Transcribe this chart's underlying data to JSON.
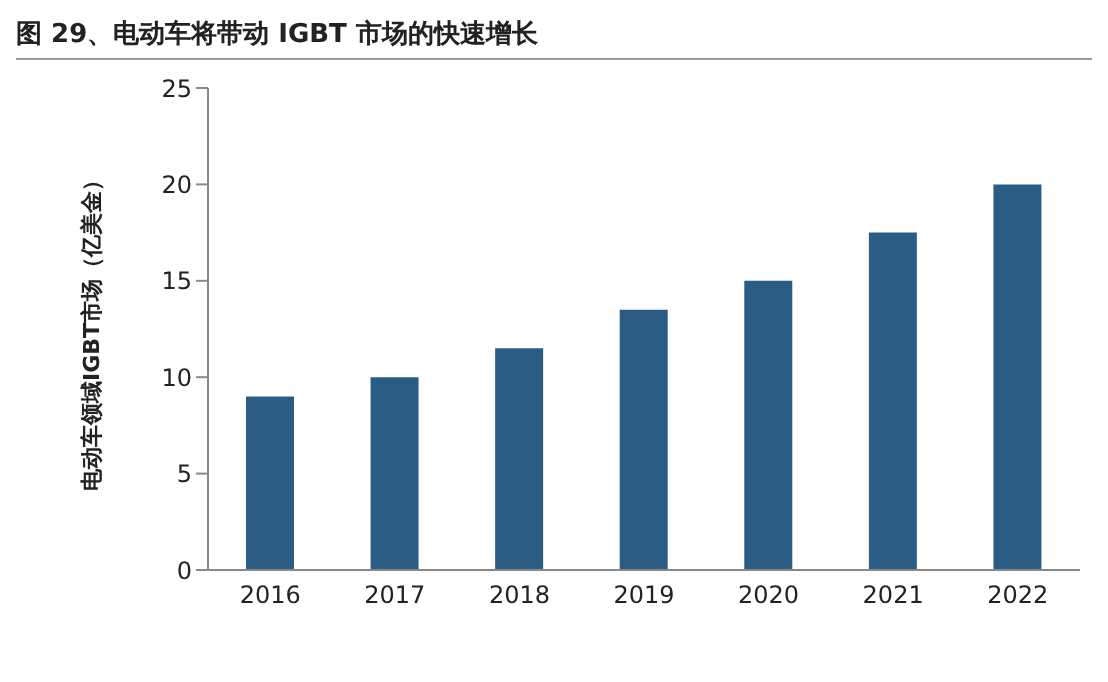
{
  "chart_data": {
    "type": "bar",
    "title": "图 29、电动车将带动 IGBT 市场的快速增长",
    "ylabel": "电动车领域IGBT市场（亿美金）",
    "categories": [
      "2016",
      "2017",
      "2018",
      "2019",
      "2020",
      "2021",
      "2022"
    ],
    "values": [
      9,
      10,
      11.5,
      13.5,
      15,
      17.5,
      20
    ],
    "color": "#2b5c84",
    "ylim": [
      0,
      25
    ],
    "yticks": [
      0,
      5,
      10,
      15,
      20,
      25
    ],
    "grid": false
  }
}
